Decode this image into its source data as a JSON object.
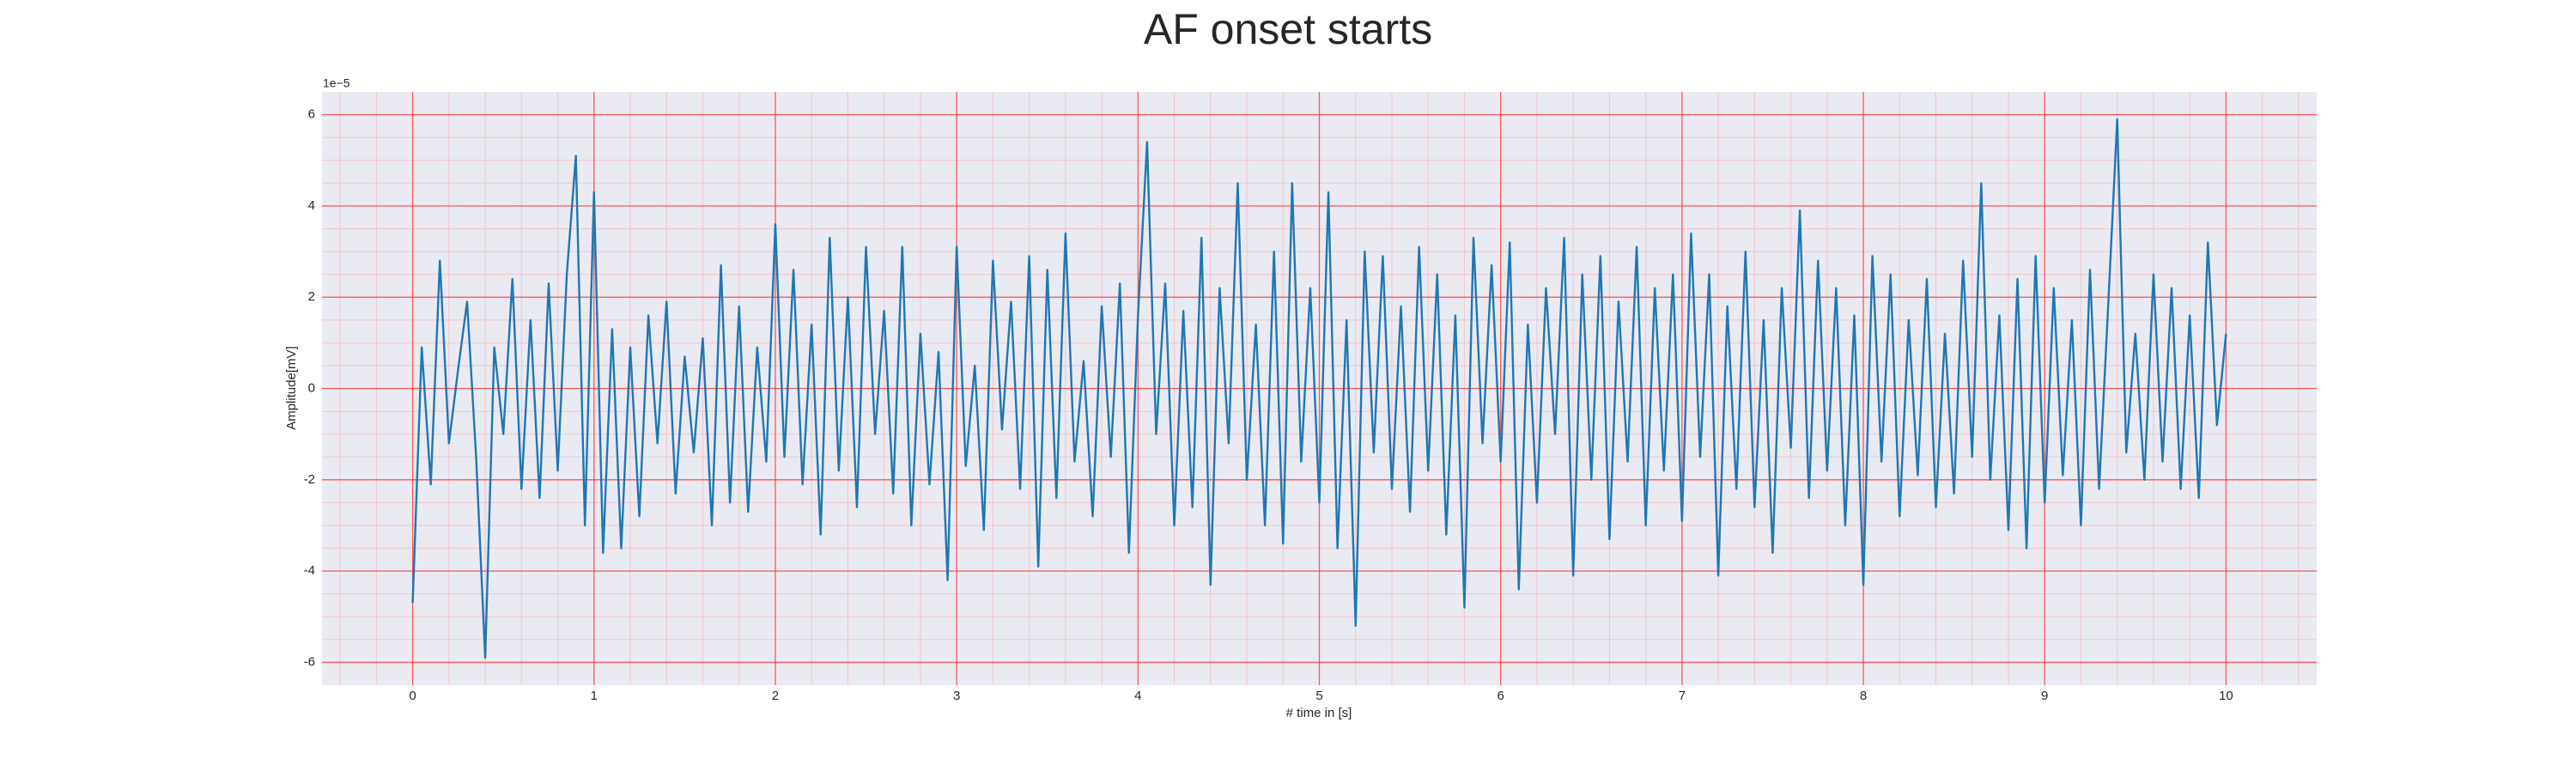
{
  "chart_data": {
    "type": "line",
    "title": "AF onset starts",
    "x_label": "# time in [s]",
    "y_label": "Amplitude[mV]",
    "y_offset_label": "1e−5",
    "color": "#1f77b4",
    "grid": true,
    "minor_grid": true,
    "xlim": [
      -0.5,
      10.5
    ],
    "ylim": [
      -6.5,
      6.5
    ],
    "xticks": [
      0,
      1,
      2,
      3,
      4,
      5,
      6,
      7,
      8,
      9,
      10
    ],
    "yticks": [
      -6,
      -4,
      -2,
      0,
      2,
      4,
      6
    ],
    "x": [
      0,
      0.05,
      0.1,
      0.15,
      0.2,
      0.25,
      0.3,
      0.35,
      0.4,
      0.45,
      0.5,
      0.55,
      0.6,
      0.65,
      0.7,
      0.75,
      0.8,
      0.85,
      0.9,
      0.95,
      1,
      1.05,
      1.1,
      1.15,
      1.2,
      1.25,
      1.3,
      1.35,
      1.4,
      1.45,
      1.5,
      1.55,
      1.6,
      1.65,
      1.7,
      1.75,
      1.8,
      1.85,
      1.9,
      1.95,
      2,
      2.05,
      2.1,
      2.15,
      2.2,
      2.25,
      2.3,
      2.35,
      2.4,
      2.45,
      2.5,
      2.55,
      2.6,
      2.65,
      2.7,
      2.75,
      2.8,
      2.85,
      2.9,
      2.95,
      3,
      3.05,
      3.1,
      3.15,
      3.2,
      3.25,
      3.3,
      3.35,
      3.4,
      3.45,
      3.5,
      3.55,
      3.6,
      3.65,
      3.7,
      3.75,
      3.8,
      3.85,
      3.9,
      3.95,
      4,
      4.05,
      4.1,
      4.15,
      4.2,
      4.25,
      4.3,
      4.35,
      4.4,
      4.45,
      4.5,
      4.55,
      4.6,
      4.65,
      4.7,
      4.75,
      4.8,
      4.85,
      4.9,
      4.95,
      5,
      5.05,
      5.1,
      5.15,
      5.2,
      5.25,
      5.3,
      5.35,
      5.4,
      5.45,
      5.5,
      5.55,
      5.6,
      5.65,
      5.7,
      5.75,
      5.8,
      5.85,
      5.9,
      5.95,
      6,
      6.05,
      6.1,
      6.15,
      6.2,
      6.25,
      6.3,
      6.35,
      6.4,
      6.45,
      6.5,
      6.55,
      6.6,
      6.65,
      6.7,
      6.75,
      6.8,
      6.85,
      6.9,
      6.95,
      7,
      7.05,
      7.1,
      7.15,
      7.2,
      7.25,
      7.3,
      7.35,
      7.4,
      7.45,
      7.5,
      7.55,
      7.6,
      7.65,
      7.7,
      7.75,
      7.8,
      7.85,
      7.9,
      7.95,
      8,
      8.05,
      8.1,
      8.15,
      8.2,
      8.25,
      8.3,
      8.35,
      8.4,
      8.45,
      8.5,
      8.55,
      8.6,
      8.65,
      8.7,
      8.75,
      8.8,
      8.85,
      8.9,
      8.95,
      9,
      9.05,
      9.1,
      9.15,
      9.2,
      9.25,
      9.3,
      9.35,
      9.4,
      9.45,
      9.5,
      9.55,
      9.6,
      9.65,
      9.7,
      9.75,
      9.8,
      9.85,
      9.9,
      9.95,
      10
    ],
    "values": [
      -4.7,
      0.9,
      -2.1,
      2.8,
      -1.2,
      0.4,
      1.9,
      -1.5,
      -5.9,
      0.9,
      -1.0,
      2.4,
      -2.2,
      1.5,
      -2.4,
      2.3,
      -1.8,
      2.5,
      5.1,
      -3.0,
      4.3,
      -3.6,
      1.3,
      -3.5,
      0.9,
      -2.8,
      1.6,
      -1.2,
      1.9,
      -2.3,
      0.7,
      -1.4,
      1.1,
      -3.0,
      2.7,
      -2.5,
      1.8,
      -2.7,
      0.9,
      -1.6,
      3.6,
      -1.5,
      2.6,
      -2.1,
      1.4,
      -3.2,
      3.3,
      -1.8,
      2.0,
      -2.6,
      3.1,
      -1.0,
      1.7,
      -2.3,
      3.1,
      -3.0,
      1.2,
      -2.1,
      0.8,
      -4.2,
      3.1,
      -1.7,
      0.5,
      -3.1,
      2.8,
      -0.9,
      1.9,
      -2.2,
      2.9,
      -3.9,
      2.6,
      -2.4,
      3.4,
      -1.6,
      0.6,
      -2.8,
      1.8,
      -1.5,
      2.3,
      -3.6,
      1.6,
      5.4,
      -1.0,
      2.3,
      -3.0,
      1.7,
      -2.6,
      3.3,
      -4.3,
      2.2,
      -1.2,
      4.5,
      -2.0,
      1.4,
      -3.0,
      3.0,
      -3.4,
      4.5,
      -1.6,
      2.2,
      -2.5,
      4.3,
      -3.5,
      1.5,
      -5.2,
      3.0,
      -1.4,
      2.9,
      -2.2,
      1.8,
      -2.7,
      3.1,
      -1.8,
      2.5,
      -3.2,
      1.6,
      -4.8,
      3.3,
      -1.2,
      2.7,
      -1.6,
      3.2,
      -4.4,
      1.4,
      -2.5,
      2.2,
      -1.0,
      3.3,
      -4.1,
      2.5,
      -2.0,
      2.9,
      -3.3,
      1.9,
      -1.6,
      3.1,
      -3.0,
      2.2,
      -1.8,
      2.5,
      -2.9,
      3.4,
      -1.5,
      2.5,
      -4.1,
      1.8,
      -2.2,
      3.0,
      -2.6,
      1.5,
      -3.6,
      2.2,
      -1.3,
      3.9,
      -2.4,
      2.8,
      -1.8,
      2.2,
      -3.0,
      1.6,
      -4.3,
      2.9,
      -1.6,
      2.5,
      -2.8,
      1.5,
      -1.9,
      2.4,
      -2.6,
      1.2,
      -2.3,
      2.8,
      -1.5,
      4.5,
      -2.0,
      1.6,
      -3.1,
      2.4,
      -3.5,
      2.9,
      -2.5,
      2.2,
      -1.9,
      1.5,
      -3.0,
      2.6,
      -2.2,
      1.8,
      5.9,
      -1.4,
      1.2,
      -2.0,
      2.5,
      -1.6,
      2.2,
      -2.2,
      1.6,
      -2.4,
      3.2,
      -0.8,
      1.2
    ]
  }
}
